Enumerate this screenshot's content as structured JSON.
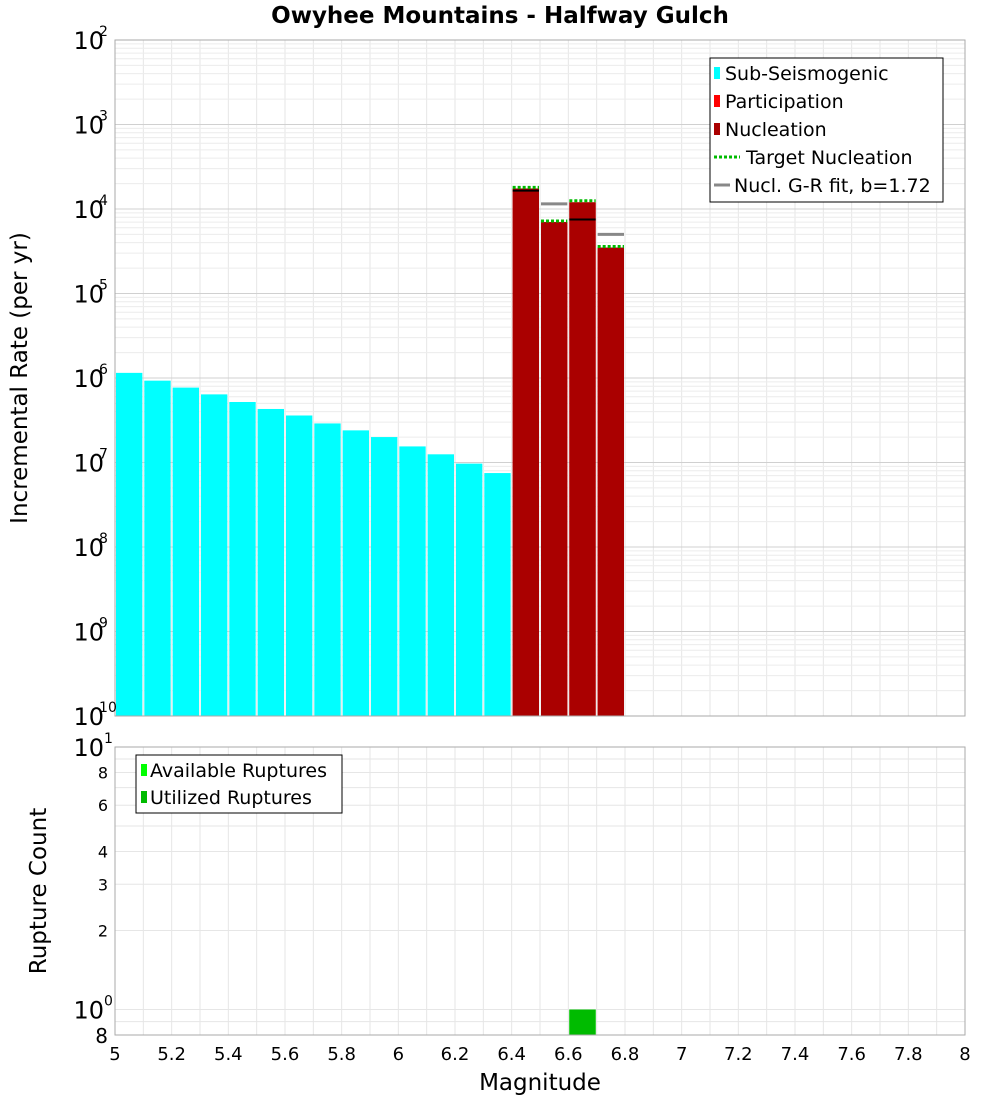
{
  "chart_data": [
    {
      "type": "bar",
      "title": "Owyhee Mountains - Halfway Gulch",
      "xlabel": "",
      "ylabel": "Incremental Rate (per yr)",
      "xlim": [
        5,
        8
      ],
      "ylim": [
        1e-10,
        0.01
      ],
      "yscale": "log",
      "bin_width": 0.1,
      "grid": true,
      "legend_position": "top-right",
      "y_major_ticks": [
        {
          "base": "10",
          "exp": "-10"
        },
        {
          "base": "10",
          "exp": "-9"
        },
        {
          "base": "10",
          "exp": "-8"
        },
        {
          "base": "10",
          "exp": "-7"
        },
        {
          "base": "10",
          "exp": "-6"
        },
        {
          "base": "10",
          "exp": "-5"
        },
        {
          "base": "10",
          "exp": "-4"
        },
        {
          "base": "10",
          "exp": "-3"
        },
        {
          "base": "10",
          "exp": "-2"
        }
      ],
      "legend": [
        {
          "label": "Sub-Seismogenic",
          "color": "#00ffff",
          "kind": "swatch"
        },
        {
          "label": "Participation",
          "color": "#ff0000",
          "kind": "swatch"
        },
        {
          "label": "Nucleation",
          "color": "#aa0000",
          "kind": "swatch"
        },
        {
          "label": "Target Nucleation",
          "color": "#00bb00",
          "kind": "dotted-line"
        },
        {
          "label": "Nucl. G-R fit, b=1.72",
          "color": "#888888",
          "kind": "line"
        }
      ],
      "series": [
        {
          "name": "Sub-Seismogenic",
          "color": "#00ffff",
          "x": [
            5.05,
            5.15,
            5.25,
            5.35,
            5.45,
            5.55,
            5.65,
            5.75,
            5.85,
            5.95,
            6.05,
            6.15,
            6.25,
            6.35
          ],
          "values": [
            1.15e-06,
            9.3e-07,
            7.7e-07,
            6.4e-07,
            5.2e-07,
            4.3e-07,
            3.6e-07,
            2.9e-07,
            2.4e-07,
            2e-07,
            1.55e-07,
            1.25e-07,
            9.7e-08,
            7.5e-08
          ]
        },
        {
          "name": "Participation",
          "color": "#ff0000",
          "x": [
            6.45,
            6.55,
            6.65,
            6.75
          ],
          "values": [
            0.000175,
            7e-05,
            0.00012,
            3.5e-05
          ]
        },
        {
          "name": "Nucleation",
          "color": "#aa0000",
          "x": [
            6.45,
            6.55,
            6.65,
            6.75
          ],
          "values": [
            0.000175,
            7e-05,
            0.00012,
            3.5e-05
          ]
        },
        {
          "name": "Target Nucleation",
          "color": "#00bb00",
          "x": [
            6.45,
            6.55,
            6.65,
            6.75
          ],
          "values": [
            0.00018,
            7.2e-05,
            0.000125,
            3.6e-05
          ]
        },
        {
          "name": "Nucl. G-R fit, b=1.72",
          "color": "#888888",
          "x": [
            6.55,
            6.75
          ],
          "values": [
            0.000115,
            5e-05
          ]
        },
        {
          "name": "",
          "color": "#000000",
          "x": [
            6.45,
            6.65
          ],
          "values": [
            0.000165,
            7.5e-05
          ]
        }
      ]
    },
    {
      "type": "bar",
      "title": "",
      "xlabel": "Magnitude",
      "ylabel": "Rupture Count",
      "xlim": [
        5,
        8
      ],
      "ylim": [
        0.8,
        10
      ],
      "yscale": "log",
      "bin_width": 0.1,
      "grid": true,
      "legend_position": "top-left",
      "x_ticks": [
        "5",
        "5.2",
        "5.4",
        "5.6",
        "5.8",
        "6",
        "6.2",
        "6.4",
        "6.6",
        "6.8",
        "7",
        "7.2",
        "7.4",
        "7.6",
        "7.8",
        "8"
      ],
      "y_major_ticks": [
        {
          "value": 1,
          "base": "10",
          "exp": "0"
        },
        {
          "value": 10,
          "base": "10",
          "exp": "1"
        }
      ],
      "y_minor_ticks": [
        {
          "value": 0.8,
          "label": "8"
        },
        {
          "value": 2,
          "label": "2"
        },
        {
          "value": 3,
          "label": "3"
        },
        {
          "value": 4,
          "label": "4"
        },
        {
          "value": 6,
          "label": "6"
        },
        {
          "value": 8,
          "label": "8"
        }
      ],
      "legend": [
        {
          "label": "Available Ruptures",
          "color": "#00ff00",
          "kind": "swatch"
        },
        {
          "label": "Utilized Ruptures",
          "color": "#00bb00",
          "kind": "swatch"
        }
      ],
      "series": [
        {
          "name": "Available Ruptures",
          "color": "#00ff00",
          "x": [
            6.65
          ],
          "values": [
            1
          ]
        },
        {
          "name": "Utilized Ruptures",
          "color": "#00bb00",
          "x": [
            6.65
          ],
          "values": [
            1
          ]
        }
      ]
    }
  ]
}
